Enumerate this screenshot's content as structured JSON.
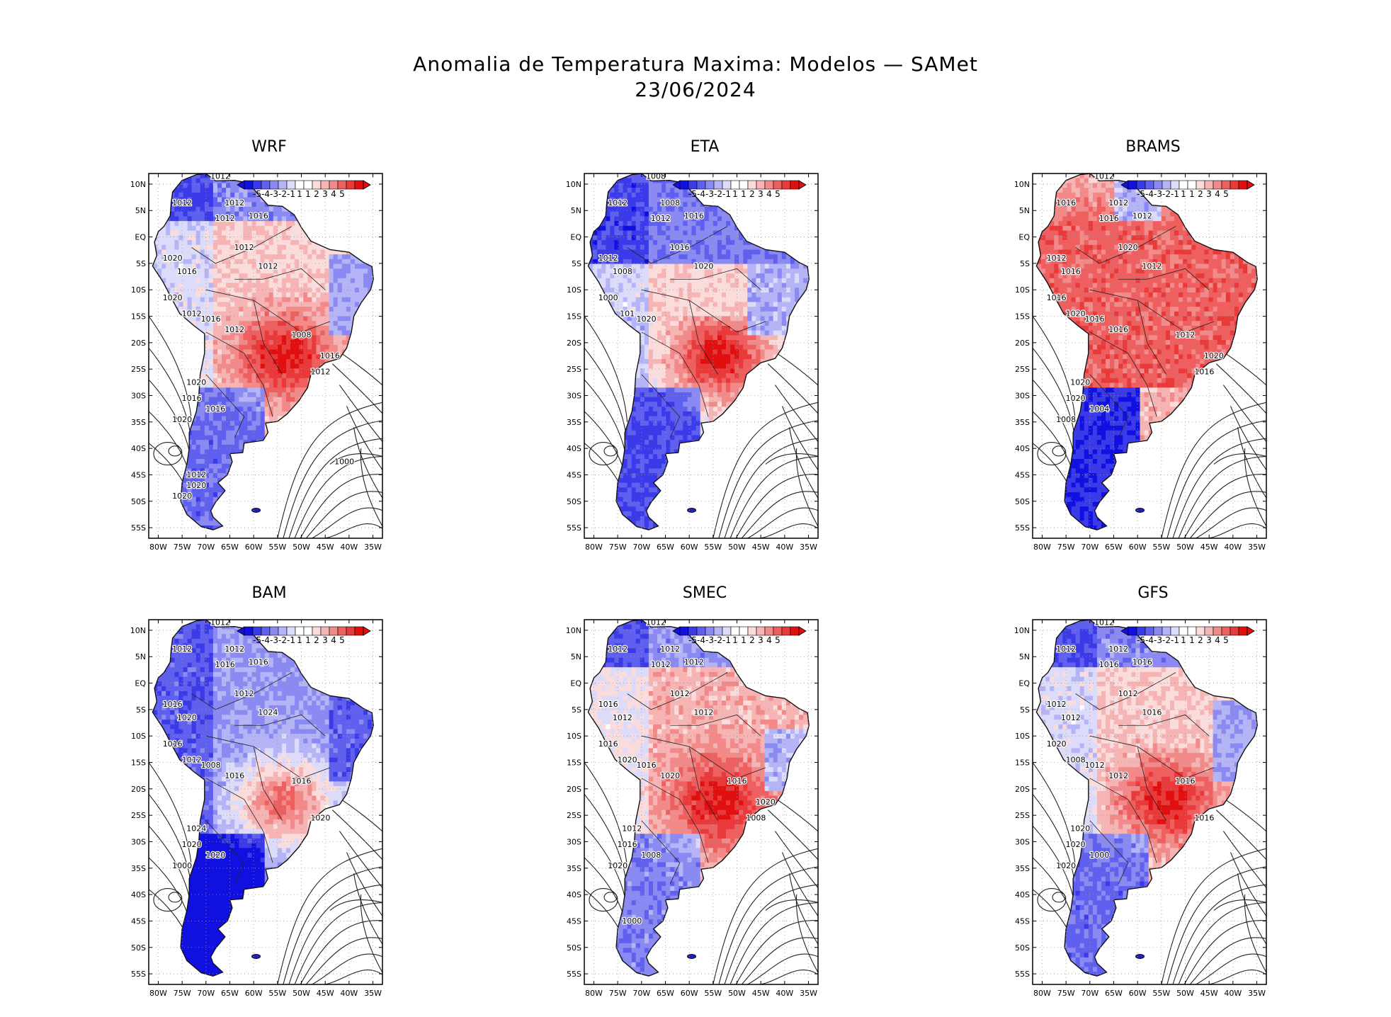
{
  "title": {
    "line1": "Anomalia de Temperatura Maxima: Modelos — SAMet",
    "line2": "23/06/2024"
  },
  "colorbar": {
    "labels": [
      "-5",
      "-4",
      "-3",
      "-2",
      "-1",
      "1",
      "1",
      "2",
      "3",
      "4",
      "5"
    ],
    "colors": [
      "#1010e0",
      "#3a3ae8",
      "#6060ee",
      "#8a8af2",
      "#b4b4f6",
      "#dcdcfa",
      "#ffffff",
      "#ffffff",
      "#fadcdc",
      "#f6b4b4",
      "#f28a8a",
      "#ee6060",
      "#e83a3a",
      "#e01010"
    ]
  },
  "axes": {
    "lat_labels": [
      "10N",
      "5N",
      "EQ",
      "5S",
      "10S",
      "15S",
      "20S",
      "25S",
      "30S",
      "35S",
      "40S",
      "45S",
      "50S",
      "55S"
    ],
    "lon_labels": [
      "80W",
      "75W",
      "70W",
      "65W",
      "60W",
      "55W",
      "50W",
      "45W",
      "40W",
      "35W"
    ]
  },
  "panels": [
    {
      "name": "WRF",
      "scheme": "mixed-south-warm",
      "contour_labels": [
        "1012",
        "1012",
        "1012",
        "1016",
        "1012",
        "1012",
        "1020",
        "1016",
        "1012",
        "1020",
        "1016",
        "1012",
        "1012",
        "1008",
        "1012",
        "1020",
        "1016",
        "1016",
        "1020",
        "1016",
        "1012",
        "1020",
        "1020",
        "1000"
      ]
    },
    {
      "name": "ETA",
      "scheme": "cool-north",
      "contour_labels": [
        "1008",
        "1012",
        "1008",
        "1016",
        "1012",
        "1016",
        "1012",
        "1008",
        "1020",
        "1000",
        "1020",
        "101"
      ]
    },
    {
      "name": "BRAMS",
      "scheme": "warm",
      "contour_labels": [
        "1012",
        "1016",
        "1012",
        "1012",
        "1016",
        "1020",
        "1012",
        "1016",
        "1012",
        "1016",
        "1016",
        "1020",
        "1016",
        "1012",
        "1016",
        "1020",
        "1020",
        "1004",
        "1008",
        "1020"
      ]
    },
    {
      "name": "BAM",
      "scheme": "cool",
      "contour_labels": [
        "1012",
        "1012",
        "1012",
        "1016",
        "1016",
        "1012",
        "1016",
        "1020",
        "1024",
        "1016",
        "1008",
        "1012",
        "1016",
        "1016",
        "1020",
        "1024",
        "1020",
        "1020",
        "1000"
      ]
    },
    {
      "name": "SMEC",
      "scheme": "mixed",
      "contour_labels": [
        "1012",
        "1012",
        "1012",
        "1012",
        "1012",
        "1012",
        "1016",
        "1012",
        "1012",
        "1016",
        "1016",
        "1020",
        "1020",
        "1016",
        "1008",
        "1012",
        "1016",
        "1008",
        "1020",
        "1020",
        "1000"
      ]
    },
    {
      "name": "GFS",
      "scheme": "mixed-south-warm",
      "contour_labels": [
        "1012",
        "1012",
        "1012",
        "1016",
        "1016",
        "1012",
        "1012",
        "1012",
        "1016",
        "1020",
        "1012",
        "1008",
        "1012",
        "1016",
        "1016",
        "1020",
        "1020",
        "1000",
        "1020"
      ]
    }
  ]
}
